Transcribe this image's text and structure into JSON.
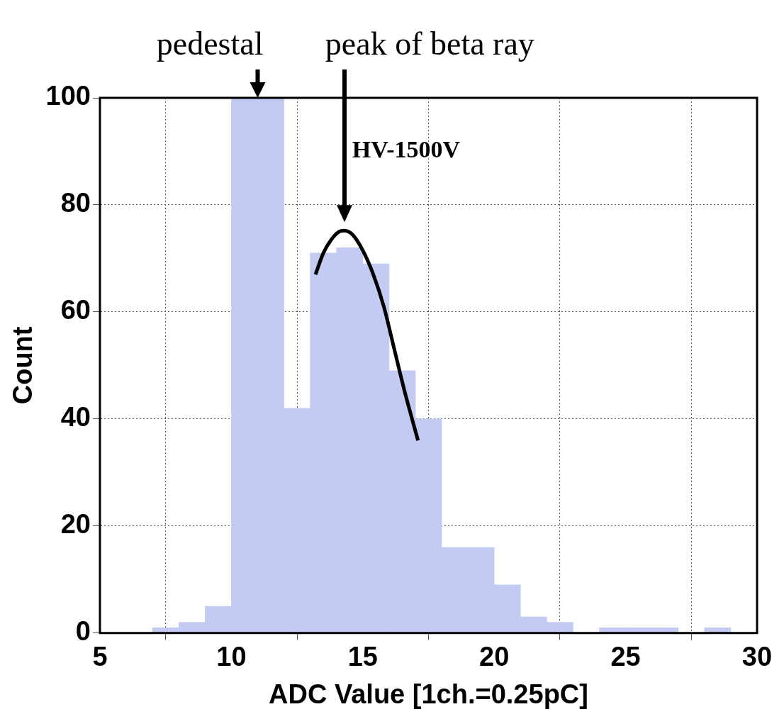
{
  "chart_data": {
    "type": "histogram",
    "xlabel": "ADC Value [1ch.=0.25pC]",
    "ylabel": "Count",
    "bins": [
      5,
      6,
      7,
      8,
      9,
      10,
      11,
      12,
      13,
      14,
      15,
      16,
      17,
      18,
      19,
      20,
      21,
      22,
      23,
      24,
      25,
      26,
      27,
      28,
      29,
      30
    ],
    "values": [
      0,
      0,
      1,
      2,
      5,
      100,
      100,
      42,
      71,
      72,
      69,
      49,
      40,
      16,
      16,
      9,
      3,
      2,
      0,
      1,
      1,
      1,
      0,
      1,
      0
    ],
    "color": "#c3cbf2",
    "series": [
      {
        "type": "line",
        "color": "#000000",
        "x": [
          13.2,
          13.5,
          13.8,
          14.1,
          14.3,
          14.6,
          15,
          15.4,
          15.8,
          16.2,
          16.6,
          17.1
        ],
        "values": [
          67,
          71,
          73.5,
          75,
          75.2,
          74.5,
          71.5,
          67,
          61,
          53,
          45,
          36
        ]
      }
    ],
    "xlim": [
      5,
      30
    ],
    "xticks": [
      5,
      10,
      15,
      20,
      25,
      30
    ],
    "ylim": [
      0,
      100
    ],
    "yticks": [
      0,
      20,
      40,
      60,
      80,
      100
    ],
    "grid": true,
    "marker": "none",
    "annotations": [
      {
        "text": "pedestal",
        "x": 11,
        "y": 100
      },
      "peak of beta ray",
      "HV-1500V"
    ]
  }
}
